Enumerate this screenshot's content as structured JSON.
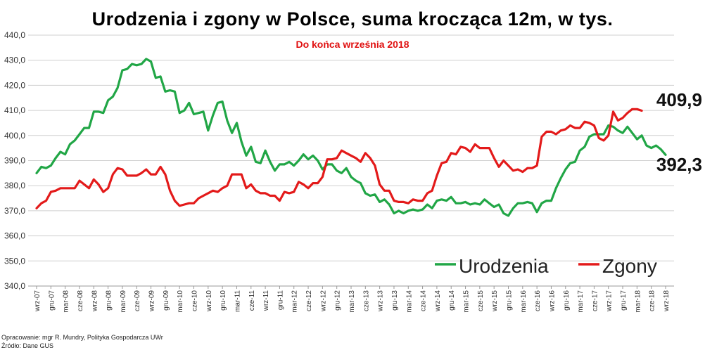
{
  "footer": {
    "author": "Opracowanie: mgr R. Mundry, Polityka Gospodarcza UWr",
    "source": "Źródło: Dane GUS"
  },
  "colors": {
    "births": "#21a646",
    "deaths": "#e31a1a",
    "grid": "#d0d0d0"
  },
  "chart_data": {
    "type": "line",
    "title": "Urodzenia i zgony w Polsce, suma krocząca 12m, w tys.",
    "subtitle": "Do końca września 2018",
    "ylim": [
      340,
      440
    ],
    "yticks": [
      "340,0",
      "350,0",
      "360,0",
      "370,0",
      "380,0",
      "390,0",
      "400,0",
      "410,0",
      "420,0",
      "430,0",
      "440,0"
    ],
    "grid": true,
    "legend_position": "bottom-right",
    "x_tick_labels": [
      "wrz-07",
      "gru-07",
      "mar-08",
      "cze-08",
      "wrz-08",
      "gru-08",
      "mar-09",
      "cze-09",
      "wrz-09",
      "gru-09",
      "mar-10",
      "cze-10",
      "wrz-10",
      "gru-10",
      "mar-11",
      "cze-11",
      "wrz-11",
      "gru-11",
      "mar-12",
      "cze-12",
      "wrz-12",
      "gru-12",
      "mar-13",
      "cze-13",
      "wrz-13",
      "gru-13",
      "mar-14",
      "cze-14",
      "wrz-14",
      "gru-14",
      "mar-15",
      "cze-15",
      "wrz-15",
      "gru-15",
      "mar-16",
      "cze-16",
      "wrz-16",
      "gru-16",
      "mar-17",
      "cze-17",
      "wrz-17",
      "gru-17",
      "mar-18",
      "cze-18",
      "wrz-18"
    ],
    "end_labels": {
      "deaths": "409,9",
      "births": "392,3"
    },
    "series": [
      {
        "name": "Urodzenia",
        "key": "births",
        "values": [
          385,
          387.5,
          387,
          388,
          391,
          393.5,
          392.5,
          396.5,
          398,
          400.5,
          403,
          403,
          409.5,
          409.5,
          409,
          414,
          415.5,
          419,
          426,
          426.5,
          428.5,
          428,
          428.5,
          430.5,
          429.5,
          423,
          423.5,
          417.5,
          418,
          417.5,
          409,
          410,
          413,
          408.5,
          409,
          409.5,
          402,
          408,
          413,
          413.5,
          406,
          401,
          405,
          397.5,
          392,
          395.5,
          389.5,
          389,
          394,
          389.5,
          386,
          388.5,
          388.5,
          389.5,
          388,
          390,
          392.5,
          390.5,
          392,
          390,
          386.5,
          388.5,
          388.5,
          386,
          385,
          387,
          383.5,
          382,
          381,
          377,
          376,
          376.5,
          373.5,
          374.5,
          372.5,
          369,
          370,
          369,
          370,
          370.5,
          370,
          370.5,
          372.5,
          371,
          374,
          374.5,
          374,
          375.5,
          373,
          373,
          373.5,
          372.5,
          373,
          372.5,
          374.5,
          373,
          371.5,
          372.5,
          369,
          368,
          371,
          373,
          373,
          373.5,
          373,
          369.5,
          373,
          374,
          374,
          379,
          383,
          386.5,
          389,
          389.5,
          394,
          395.5,
          399.5,
          400.5,
          400.5,
          400.5,
          404,
          403.5,
          402,
          401,
          403.5,
          401,
          398.5,
          400,
          396,
          395,
          396,
          394.5,
          392.3
        ]
      },
      {
        "name": "Zgony",
        "key": "deaths",
        "values": [
          371,
          373,
          374,
          377.5,
          378,
          379,
          379,
          379,
          379,
          382,
          380.5,
          379,
          382.5,
          380.5,
          377.5,
          379,
          384.5,
          387,
          386.5,
          384,
          384,
          384,
          385,
          386.5,
          384.5,
          384.5,
          387.5,
          384.5,
          378,
          374,
          372,
          372.5,
          373,
          373,
          375,
          376,
          377,
          378,
          377.5,
          379,
          380,
          384.5,
          384.5,
          384.5,
          379,
          380.5,
          378,
          377,
          377,
          376,
          376,
          374,
          377.5,
          377,
          377.5,
          381.5,
          380.5,
          379,
          381,
          381,
          383.5,
          390.5,
          390.5,
          391,
          394,
          393,
          392,
          391,
          389.5,
          393,
          391,
          388,
          380.5,
          378,
          378,
          374,
          373.5,
          373.5,
          373,
          374.5,
          374,
          374,
          377,
          378,
          384,
          389,
          389.5,
          393,
          392.5,
          395.5,
          395,
          393.5,
          396.5,
          395,
          395,
          395,
          391,
          387.5,
          390,
          388,
          386,
          386.5,
          385.5,
          387,
          387,
          388,
          399.5,
          401.5,
          401.5,
          400.5,
          402,
          402.5,
          404,
          403,
          403,
          405.5,
          405,
          404,
          399,
          398,
          400,
          409.5,
          406,
          407,
          409,
          410.5,
          410.5,
          409.9
        ]
      }
    ]
  }
}
